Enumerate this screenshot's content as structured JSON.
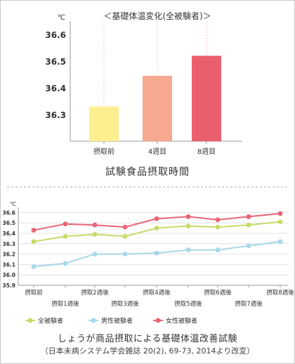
{
  "chart_data": [
    {
      "type": "bar",
      "title": "＜基礎体温変化(全被験者)＞",
      "ylabel_unit": "℃",
      "caption": "試験食品摂取時間",
      "categories": [
        "摂取前",
        "4週目",
        "8週目"
      ],
      "values": [
        36.33,
        36.445,
        36.52
      ],
      "colors": [
        "#fdef8f",
        "#f6a98e",
        "#ea5f6d"
      ],
      "ylim": [
        36.2,
        36.65
      ],
      "yticks": [
        "36.3",
        "36.4",
        "36.5",
        "36.6"
      ],
      "ytick_values": [
        36.3,
        36.4,
        36.5,
        36.6
      ],
      "grid": false
    },
    {
      "type": "line",
      "unit": "℃",
      "x_labels": [
        "摂取前",
        "摂取1週後",
        "摂取2週後",
        "摂取3週後",
        "摂取4週後",
        "摂取5週後",
        "摂取6週後",
        "摂取7週後",
        "摂取8週後"
      ],
      "series": [
        {
          "name": "全被験者",
          "color": "#c5dc6a",
          "values": [
            36.32,
            36.37,
            36.39,
            36.37,
            36.45,
            36.47,
            36.46,
            36.48,
            36.51
          ]
        },
        {
          "name": "男性被験者",
          "color": "#a6d8e8",
          "values": [
            36.08,
            36.11,
            36.2,
            36.2,
            36.21,
            36.24,
            36.24,
            36.28,
            36.32
          ]
        },
        {
          "name": "女性被験者",
          "color": "#e86577",
          "values": [
            36.43,
            36.49,
            36.48,
            36.46,
            36.54,
            36.56,
            36.53,
            36.56,
            36.59
          ]
        }
      ],
      "yticks": [
        "35.9",
        "36.0",
        "36.1",
        "36.2",
        "36.3",
        "36.4",
        "36.5",
        "36.6"
      ],
      "ytick_values": [
        35.9,
        36.0,
        36.1,
        36.2,
        36.3,
        36.4,
        36.5,
        36.6
      ],
      "ylim": [
        35.9,
        36.65
      ],
      "grid": true,
      "legend": "bottom-left",
      "caption": "しょうが商品摂取による基礎体温改善試験",
      "source": "（日本未病システム学会雑誌 20(2), 69-73, 2014より改変）"
    }
  ]
}
